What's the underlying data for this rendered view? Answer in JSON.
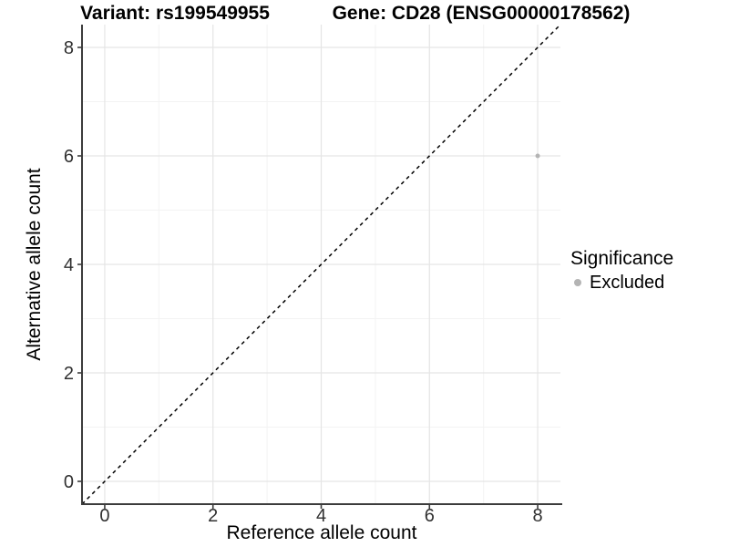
{
  "chart_data": {
    "type": "scatter",
    "title_left": "Variant: rs199549955",
    "title_right": "Gene: CD28 (ENSG00000178562)",
    "xlabel": "Reference allele count",
    "ylabel": "Alternative allele count",
    "xlim": [
      -0.42,
      8.42
    ],
    "ylim": [
      -0.42,
      8.42
    ],
    "xticks": [
      0,
      2,
      4,
      6,
      8
    ],
    "yticks": [
      0,
      2,
      4,
      6,
      8
    ],
    "minor_ticks_x": [
      1,
      3,
      5,
      7
    ],
    "minor_ticks_y": [
      1,
      3,
      5,
      7
    ],
    "grid": "major+minor",
    "points": [
      {
        "x": 8,
        "y": 6,
        "significance": "Excluded"
      }
    ],
    "identity_line": {
      "style": "dashed",
      "from": [
        -0.42,
        -0.42
      ],
      "to": [
        8.42,
        8.42
      ]
    },
    "point_color": "#b4b4b4",
    "legend": {
      "title": "Significance",
      "position": "right",
      "items": [
        {
          "label": "Excluded",
          "color": "#b4b4b4"
        }
      ]
    }
  },
  "colors": {
    "background": "#ffffff",
    "grid_major": "#e5e5e5",
    "grid_minor": "#f3f3f3",
    "axis": "#3c3c3c",
    "tick_text": "#303030",
    "dashed_line": "#000000"
  }
}
